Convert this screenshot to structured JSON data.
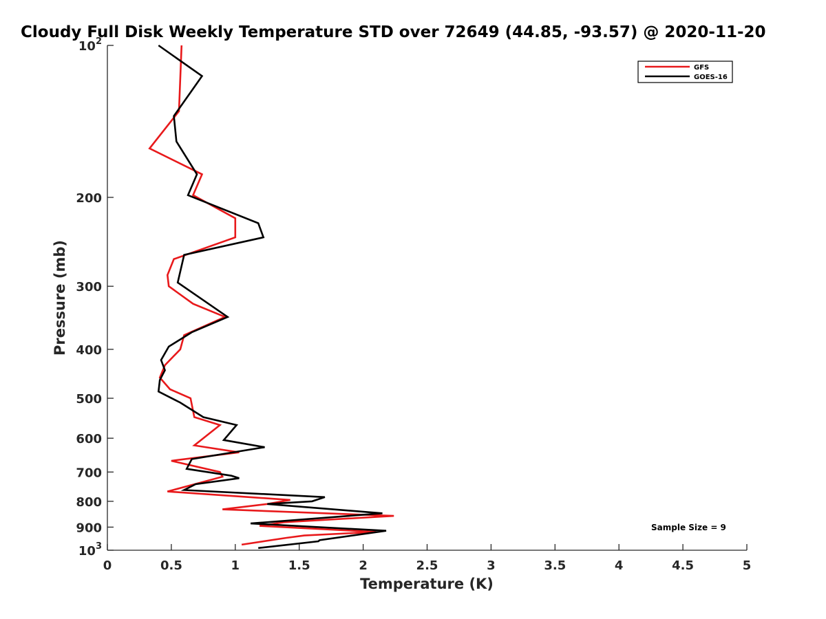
{
  "chart_data": {
    "type": "line",
    "title": "Cloudy Full Disk Weekly Temperature STD over 72649 (44.85, -93.57) @ 2020-11-20",
    "xlabel": "Temperature (K)",
    "ylabel": "Pressure (mb)",
    "xlim": [
      0,
      5
    ],
    "ylim": [
      1000,
      100
    ],
    "y_scale": "log",
    "y_reversed": true,
    "grid": false,
    "legend_position": "top-right",
    "x_ticks": [
      0,
      0.5,
      1,
      1.5,
      2,
      2.5,
      3,
      3.5,
      4,
      4.5,
      5
    ],
    "x_tick_labels": [
      "0",
      "0.5",
      "1",
      "1.5",
      "2",
      "2.5",
      "3",
      "3.5",
      "4",
      "4.5",
      "5"
    ],
    "y_ticks": [
      100,
      200,
      300,
      400,
      500,
      600,
      700,
      800,
      900,
      1000
    ],
    "y_tick_labels": [
      {
        "base": "10",
        "exp": "2"
      },
      {
        "base": "200",
        "exp": ""
      },
      {
        "base": "300",
        "exp": ""
      },
      {
        "base": "400",
        "exp": ""
      },
      {
        "base": "500",
        "exp": ""
      },
      {
        "base": "600",
        "exp": ""
      },
      {
        "base": "700",
        "exp": ""
      },
      {
        "base": "800",
        "exp": ""
      },
      {
        "base": "900",
        "exp": ""
      },
      {
        "base": "10",
        "exp": "3"
      }
    ],
    "annotation": "Sample Size = 9",
    "series": [
      {
        "name": "GFS",
        "color": "#e8191b",
        "points": [
          [
            0.58,
            100
          ],
          [
            0.56,
            135
          ],
          [
            0.33,
            160
          ],
          [
            0.74,
            180
          ],
          [
            0.67,
            198
          ],
          [
            1.0,
            220
          ],
          [
            1.0,
            240
          ],
          [
            0.52,
            265
          ],
          [
            0.47,
            285
          ],
          [
            0.48,
            300
          ],
          [
            0.67,
            325
          ],
          [
            0.92,
            345
          ],
          [
            0.6,
            375
          ],
          [
            0.57,
            400
          ],
          [
            0.45,
            430
          ],
          [
            0.41,
            455
          ],
          [
            0.49,
            480
          ],
          [
            0.65,
            500
          ],
          [
            0.68,
            545
          ],
          [
            0.88,
            565
          ],
          [
            0.68,
            620
          ],
          [
            1.03,
            640
          ],
          [
            0.5,
            665
          ],
          [
            0.88,
            700
          ],
          [
            0.9,
            715
          ],
          [
            0.47,
            765
          ],
          [
            1.43,
            795
          ],
          [
            1.25,
            810
          ],
          [
            0.9,
            830
          ],
          [
            2.24,
            855
          ],
          [
            1.38,
            880
          ],
          [
            1.19,
            895
          ],
          [
            2.1,
            920
          ],
          [
            1.54,
            935
          ],
          [
            1.4,
            945
          ],
          [
            1.05,
            975
          ]
        ]
      },
      {
        "name": "GOES-16",
        "color": "#000000",
        "points": [
          [
            0.4,
            100
          ],
          [
            0.74,
            115
          ],
          [
            0.52,
            138
          ],
          [
            0.54,
            155
          ],
          [
            0.7,
            180
          ],
          [
            0.63,
            198
          ],
          [
            1.18,
            225
          ],
          [
            1.22,
            240
          ],
          [
            0.6,
            260
          ],
          [
            0.55,
            295
          ],
          [
            0.94,
            345
          ],
          [
            0.66,
            370
          ],
          [
            0.48,
            395
          ],
          [
            0.42,
            420
          ],
          [
            0.45,
            440
          ],
          [
            0.41,
            460
          ],
          [
            0.4,
            485
          ],
          [
            0.57,
            510
          ],
          [
            0.75,
            545
          ],
          [
            1.01,
            565
          ],
          [
            0.91,
            605
          ],
          [
            1.23,
            625
          ],
          [
            0.66,
            660
          ],
          [
            0.62,
            690
          ],
          [
            0.97,
            712
          ],
          [
            1.03,
            720
          ],
          [
            0.69,
            740
          ],
          [
            0.6,
            760
          ],
          [
            1.7,
            785
          ],
          [
            1.6,
            800
          ],
          [
            1.25,
            810
          ],
          [
            2.15,
            845
          ],
          [
            1.12,
            885
          ],
          [
            2.18,
            915
          ],
          [
            1.66,
            955
          ],
          [
            1.65,
            960
          ],
          [
            1.18,
            990
          ]
        ]
      }
    ]
  }
}
